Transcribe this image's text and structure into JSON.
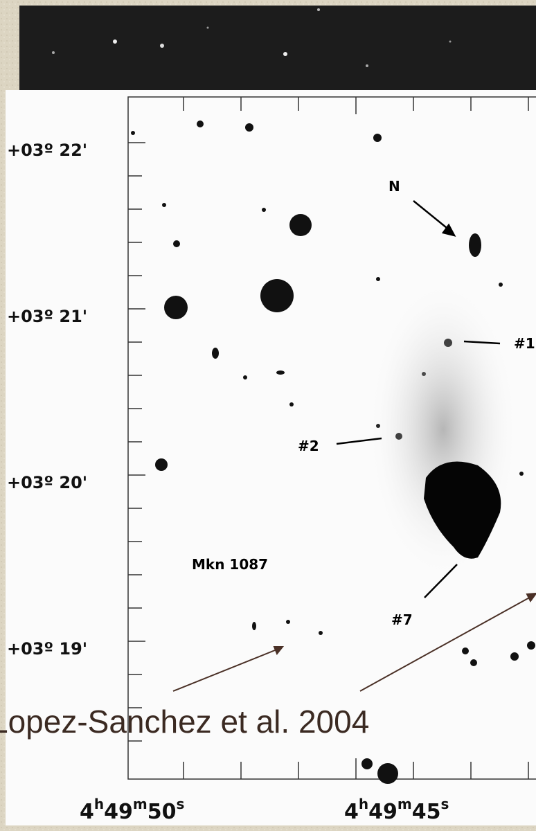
{
  "image": {
    "y_labels": [
      "+03º 22'",
      "+03º 21'",
      "+03º 20'",
      "+03º 19'"
    ],
    "x_labels": [
      [
        "4",
        "h",
        "49",
        "m",
        "50",
        "s"
      ],
      [
        "4",
        "h",
        "49",
        "m",
        "45",
        "s"
      ]
    ],
    "annotations": [
      "N",
      "#1",
      "#2",
      "Mkn 1087",
      "#7"
    ]
  },
  "caption": "Lopez-Sanchez et al. 2004"
}
